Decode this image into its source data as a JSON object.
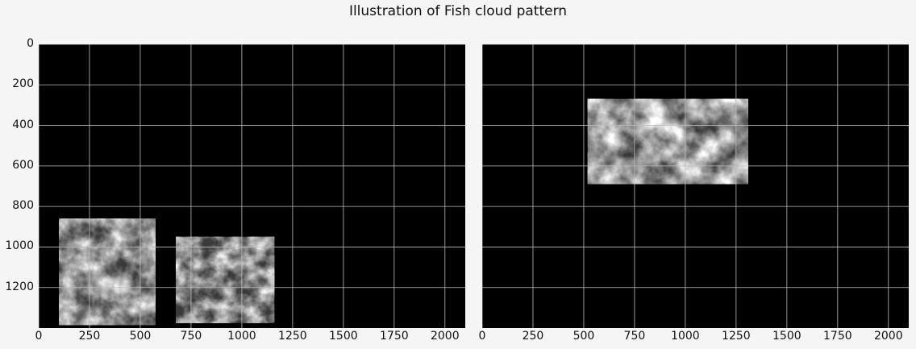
{
  "title": "Illustration of Fish cloud pattern",
  "panels": [
    {
      "image": "satellite-cloud-mask-left",
      "regions": [
        {
          "x0": 100,
          "x1": 575,
          "y0": 860,
          "y1": 1385
        },
        {
          "x0": 675,
          "x1": 1160,
          "y0": 950,
          "y1": 1375
        }
      ]
    },
    {
      "image": "satellite-cloud-mask-right",
      "regions": [
        {
          "x0": 520,
          "x1": 1310,
          "y0": 270,
          "y1": 690
        }
      ]
    }
  ],
  "axes": {
    "x_ticks": [
      "0",
      "250",
      "500",
      "750",
      "1000",
      "1250",
      "1500",
      "1750",
      "2000"
    ],
    "y_ticks": [
      "0",
      "200",
      "400",
      "600",
      "800",
      "1000",
      "1200"
    ],
    "xlim": [
      0,
      2100
    ],
    "ylim": [
      1400,
      0
    ],
    "grid": true
  },
  "colors": {
    "background": "#f5f5f5",
    "image_bg": "#000000",
    "grid": "#bdbdbd"
  }
}
